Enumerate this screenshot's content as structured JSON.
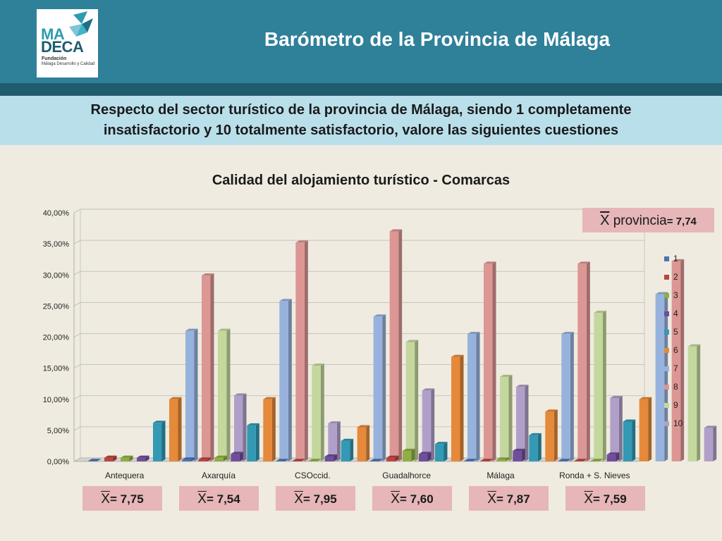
{
  "header": {
    "title": "Barómetro de la Provincia de Málaga",
    "logo": {
      "ma": "MA",
      "deca": "DECA",
      "fundacion": "Fundación",
      "subtitle": "Málaga Desarrollo y Calidad"
    }
  },
  "banner": {
    "line1": "Respecto del sector turístico de la provincia de Málaga, siendo 1 completamente",
    "line2": "insatisfactorio y 10 totalmente satisfactorio, valore las siguientes cuestiones"
  },
  "provincia_mean": {
    "symbol": "X",
    "label": " provincia",
    "value": "= 7,74"
  },
  "means": [
    {
      "symbol": "X",
      "value": "= 7,75"
    },
    {
      "symbol": "X",
      "value": "= 7,54"
    },
    {
      "symbol": "X",
      "value": "= 7,95"
    },
    {
      "symbol": "X",
      "value": "= 7,60"
    },
    {
      "symbol": "X",
      "value": "= 7,87"
    },
    {
      "symbol": "X",
      "value": "= 7,59"
    }
  ],
  "colors": [
    "#4a74b4",
    "#b9453f",
    "#8faf45",
    "#6f4f9a",
    "#3399b4",
    "#e5893a",
    "#97b2dc",
    "#dc9694",
    "#c4d79d",
    "#b0a0c9"
  ],
  "chart_data": {
    "type": "bar",
    "title": "Calidad del alojamiento turístico - Comarcas",
    "categories": [
      "Antequera",
      "Axarquía",
      "CSOccid.",
      "Guadalhorce",
      "Málaga",
      "Ronda + S. Nieves"
    ],
    "ylim": [
      0,
      40
    ],
    "yticks": [
      "0,00%",
      "5,00%",
      "10,00%",
      "15,00%",
      "20,00%",
      "25,00%",
      "30,00%",
      "35,00%",
      "40,00%"
    ],
    "legend_position": "right",
    "series": [
      {
        "name": "1",
        "values": [
          0.0,
          0.3,
          0.0,
          0.0,
          0.0,
          0.0
        ]
      },
      {
        "name": "2",
        "values": [
          0.6,
          0.3,
          0.0,
          0.6,
          0.0,
          0.0
        ]
      },
      {
        "name": "3",
        "values": [
          0.6,
          0.6,
          0.0,
          1.7,
          0.3,
          0.0
        ]
      },
      {
        "name": "4",
        "values": [
          0.6,
          1.2,
          0.8,
          1.2,
          1.7,
          1.1
        ]
      },
      {
        "name": "5",
        "values": [
          6.2,
          5.8,
          3.3,
          2.8,
          4.2,
          6.4
        ]
      },
      {
        "name": "6",
        "values": [
          10.0,
          10.0,
          5.5,
          16.8,
          8.0,
          10.0
        ]
      },
      {
        "name": "7",
        "values": [
          21.0,
          25.8,
          23.3,
          20.5,
          20.5,
          26.9
        ]
      },
      {
        "name": "8",
        "values": [
          29.9,
          35.2,
          37.0,
          31.8,
          31.8,
          32.2
        ]
      },
      {
        "name": "9",
        "values": [
          21.0,
          15.4,
          19.2,
          13.6,
          23.9,
          18.5
        ]
      },
      {
        "name": "10",
        "values": [
          10.6,
          6.1,
          11.4,
          12.0,
          10.2,
          5.4
        ]
      }
    ]
  }
}
